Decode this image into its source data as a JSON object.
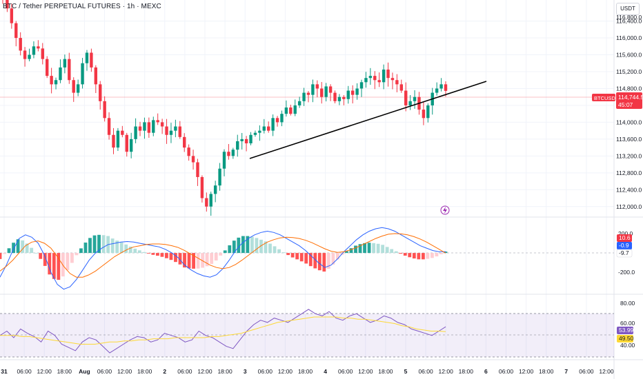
{
  "header": {
    "title": "BTC / Tether PERPETUAL FUTURES · 1h · MEXC",
    "currency": "USDT"
  },
  "price_axis": {
    "ticks": [
      "116,400.0",
      "116,000.0",
      "115,600.0",
      "115,200.0",
      "114,800.0",
      "114,400.0",
      "114,000.0",
      "113,600.0",
      "113,200.0",
      "112,800.0",
      "112,400.0",
      "112,000.0"
    ],
    "ticks_top_partial": "116,800.0",
    "symbol_tag": "BTCUSDT.P",
    "price_tag": "114,744.5",
    "countdown": "45:07"
  },
  "macd_axis": {
    "ticks": [
      "200.0",
      "-200.0"
    ],
    "tags": [
      "10.6",
      "-0.9",
      "-9.7"
    ]
  },
  "rsi_axis": {
    "ticks": [
      "80.00",
      "60.00",
      "40.00"
    ],
    "tags": [
      "53.99",
      "49.50"
    ]
  },
  "time_axis": {
    "labels": [
      "31",
      "06:00",
      "12:00",
      "18:00",
      "Aug",
      "06:00",
      "12:00",
      "18:00",
      "2",
      "06:00",
      "12:00",
      "18:00",
      "3",
      "06:00",
      "12:00",
      "18:00",
      "4",
      "06:00",
      "12:00",
      "18:00",
      "5",
      "06:00",
      "12:00",
      "18:00",
      "6",
      "06:00",
      "12:00",
      "18:00",
      "7",
      "06:00",
      "12:00"
    ]
  },
  "colors": {
    "up": "#089981",
    "down": "#f23645",
    "macd_line": "#2962ff",
    "signal_line": "#ff6d00",
    "rsi_line": "#7e57c2",
    "rsi_ma": "#fdd835",
    "hist_up_strong": "#26a69a",
    "hist_up_weak": "#b2dfdb",
    "hist_down_strong": "#ff5252",
    "hist_down_weak": "#ffcdd2",
    "trendline": "#000000"
  },
  "chart_data": [
    {
      "type": "candlestick",
      "title": "BTC / Tether PERPETUAL FUTURES · 1h · MEXC",
      "ylim": [
        111800,
        116900
      ],
      "closes": [
        116950,
        116700,
        116350,
        116000,
        115700,
        115500,
        115600,
        115800,
        115750,
        115500,
        115100,
        114900,
        115000,
        115300,
        115500,
        115000,
        114700,
        114900,
        115400,
        115650,
        115300,
        114900,
        114500,
        114100,
        113700,
        113400,
        113800,
        113700,
        113300,
        113600,
        113900,
        113800,
        114000,
        113750,
        114050,
        114000,
        113900,
        113700,
        113800,
        113900,
        113650,
        113400,
        113200,
        113050,
        112700,
        112200,
        112000,
        112300,
        112500,
        112900,
        113300,
        113200,
        113350,
        113550,
        113600,
        113500,
        113700,
        113750,
        113800,
        113900,
        113800,
        114100,
        114000,
        114200,
        114350,
        114200,
        114400,
        114500,
        114700,
        114650,
        114900,
        114800,
        114600,
        114850,
        114700,
        114500,
        114600,
        114550,
        114750,
        114650,
        114800,
        114950,
        115050,
        115100,
        115000,
        114950,
        115250,
        115050,
        115000,
        114900,
        114750,
        114400,
        114500,
        114600,
        114300,
        114100,
        114400,
        114700,
        114800,
        114900,
        114744.5
      ],
      "annotations": [
        "trendline from 3 Aug 00:00 to 5 Aug 15:00"
      ]
    },
    {
      "type": "line",
      "title": "MACD",
      "ylim": [
        -330,
        280
      ],
      "series": [
        {
          "values": [
            -200,
            -100,
            20,
            120,
            150,
            130,
            80,
            -20,
            -160,
            -260,
            -300,
            -280,
            -220,
            -140,
            -60,
            0,
            40,
            70,
            80,
            90,
            95,
            90,
            80,
            70,
            60,
            50,
            30,
            0,
            -40,
            -100,
            -140,
            -170,
            -190,
            -200,
            -180,
            -130,
            -60,
            20,
            80,
            120,
            150,
            170,
            180,
            170,
            150,
            120,
            90,
            60,
            20,
            -30,
            -80,
            -120,
            -100,
            -50,
            10,
            60,
            110,
            150,
            180,
            200,
            210,
            200,
            180,
            150,
            120,
            90,
            60,
            40,
            20,
            10,
            10.6
          ]
        },
        {
          "values": [
            -150,
            -110,
            -60,
            0,
            60,
            90,
            100,
            80,
            40,
            -30,
            -110,
            -170,
            -200,
            -200,
            -180,
            -150,
            -110,
            -70,
            -30,
            0,
            30,
            50,
            60,
            70,
            75,
            75,
            70,
            60,
            45,
            20,
            -10,
            -40,
            -70,
            -100,
            -120,
            -130,
            -120,
            -95,
            -60,
            -20,
            20,
            60,
            90,
            110,
            125,
            130,
            128,
            120,
            105,
            85,
            60,
            35,
            15,
            5,
            10,
            25,
            45,
            70,
            95,
            120,
            140,
            155,
            160,
            158,
            150,
            135,
            115,
            90,
            60,
            30,
            -0.9
          ]
        }
      ]
    },
    {
      "type": "line",
      "title": "RSI",
      "ylim": [
        25,
        82
      ],
      "series": [
        {
          "values": [
            46,
            50,
            44,
            52,
            48,
            45,
            40,
            50,
            46,
            38,
            35,
            32,
            40,
            44,
            42,
            36,
            30,
            34,
            38,
            42,
            45,
            44,
            40,
            42,
            48,
            46,
            44,
            40,
            42,
            50,
            46,
            44,
            40,
            36,
            34,
            42,
            50,
            56,
            60,
            58,
            62,
            60,
            58,
            62,
            66,
            70,
            66,
            64,
            68,
            62,
            60,
            64,
            66,
            62,
            58,
            60,
            64,
            62,
            58,
            56,
            52,
            50,
            48,
            46,
            50,
            53.99
          ]
        },
        {
          "values": [
            46,
            46,
            46,
            45,
            45,
            44,
            43,
            42,
            41,
            40,
            39,
            38,
            38,
            38,
            39,
            40,
            40,
            41,
            41,
            42,
            42,
            43,
            43,
            43,
            44,
            44,
            44,
            44,
            44,
            45,
            45,
            46,
            47,
            48,
            50,
            52,
            54,
            56,
            58,
            59,
            60,
            61,
            62,
            63,
            63,
            63,
            63,
            62,
            62,
            61,
            61,
            60,
            59,
            58,
            57,
            55,
            54,
            52,
            51,
            50,
            50,
            49.5
          ]
        }
      ]
    }
  ]
}
